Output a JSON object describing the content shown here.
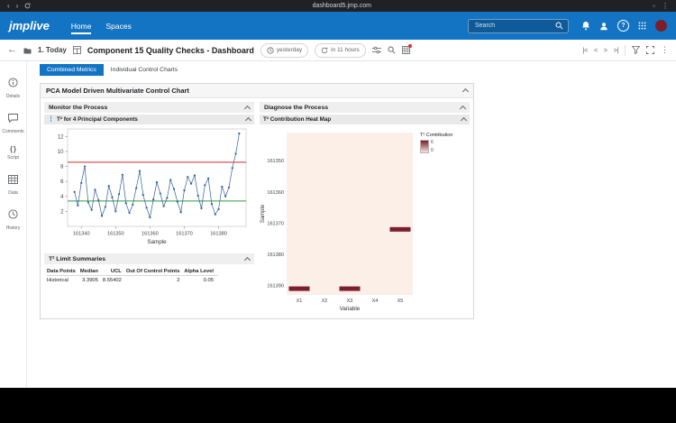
{
  "browser": {
    "url": "dashboard5.jmp.com"
  },
  "app_header": {
    "logo": "jmplive",
    "nav": [
      {
        "label": "Home"
      },
      {
        "label": "Spaces"
      }
    ],
    "search": {
      "placeholder": "Search"
    },
    "avatar_initial": ""
  },
  "toolbar": {
    "breadcrumb": "1. Today",
    "title": "Component 15 Quality Checks - Dashboard",
    "updated_label": "yesterday",
    "refresh_label": "in 11 hours"
  },
  "sidebar": {
    "items": [
      {
        "label": "Details"
      },
      {
        "label": "Comments"
      },
      {
        "label": "Script"
      },
      {
        "label": "Data"
      },
      {
        "label": "History"
      }
    ]
  },
  "tabs": [
    {
      "label": "Combined Metrics"
    },
    {
      "label": "Individual Control Charts"
    }
  ],
  "panel": {
    "title": "PCA Model Driven Multivariate Control Chart",
    "monitor_title": "Monitor the Process",
    "diagnose_title": "Diagnose the Process",
    "limits": {
      "title": "T² Limit Summaries",
      "headers": [
        "Data Points",
        "Median",
        "UCL",
        "Out Of Control Points",
        "Alpha Level"
      ],
      "row": [
        "Historical",
        "3.3905",
        "8.55402",
        "2",
        "0.05"
      ]
    }
  },
  "chart_data": [
    {
      "type": "line",
      "title": "T² for 4 Principal Components",
      "xlabel": "Sample",
      "ylabel": "",
      "x_start": 161338,
      "x_step": 1,
      "values": [
        4.6,
        2.8,
        5.8,
        8.0,
        3.2,
        2.2,
        4.9,
        3.5,
        1.4,
        2.6,
        5.4,
        3.9,
        2.0,
        4.3,
        6.9,
        3.1,
        1.8,
        2.9,
        5.1,
        7.4,
        4.2,
        2.5,
        1.2,
        3.6,
        5.9,
        4.4,
        2.7,
        3.8,
        6.2,
        5.0,
        3.3,
        1.9,
        4.8,
        6.6,
        5.7,
        6.8,
        4.1,
        2.4,
        5.5,
        6.4,
        3.0,
        1.6,
        2.3,
        5.3,
        4.0,
        5.2,
        7.8,
        9.7,
        12.4
      ],
      "xlim": [
        161336,
        161388
      ],
      "ylim": [
        0,
        13
      ],
      "x_ticks": [
        161340,
        161350,
        161360,
        161370,
        161380
      ],
      "y_ticks": [
        2,
        4,
        6,
        8,
        10,
        12
      ],
      "ucl": 8.55402,
      "center": 3.3905,
      "out_of_control_points": 2,
      "series_color": "#2f5e9e",
      "ucl_color": "#d02b27",
      "center_color": "#2e9e3e",
      "grid": false,
      "legend_position": "none"
    },
    {
      "type": "heatmap",
      "title": "T² Contribution Heat Map",
      "xlabel": "Variable",
      "ylabel": "Sample",
      "columns": [
        "X1",
        "X2",
        "X3",
        "X4",
        "X5"
      ],
      "ylim": [
        161341,
        161393
      ],
      "y_ticks": [
        161350,
        161360,
        161370,
        161380,
        161390
      ],
      "background": "#fcefe8",
      "high_color": "#7a1f2b",
      "cells": [
        {
          "variable": "X1",
          "sample": 161391,
          "value": 6
        },
        {
          "variable": "X3",
          "sample": 161391,
          "value": 6
        },
        {
          "variable": "X5",
          "sample": 161372,
          "value": 6
        }
      ],
      "legend": {
        "title": "T² Contribution",
        "max": "6",
        "min": "0"
      }
    }
  ]
}
